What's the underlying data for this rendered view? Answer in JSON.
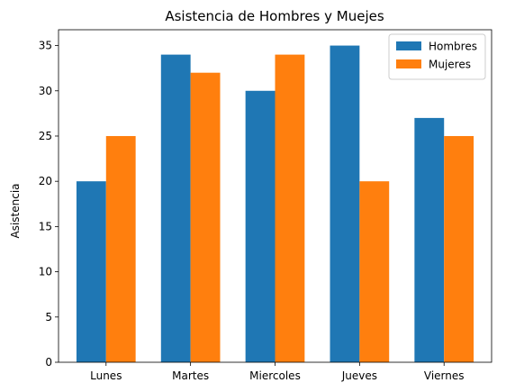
{
  "chart_data": {
    "type": "bar",
    "title": "Asistencia de Hombres y Muejes",
    "xlabel": "",
    "ylabel": "Asistencia",
    "categories": [
      "Lunes",
      "Martes",
      "Miercoles",
      "Jueves",
      "Viernes"
    ],
    "series": [
      {
        "name": "Hombres",
        "color": "#1f77b4",
        "values": [
          20,
          34,
          30,
          35,
          27
        ]
      },
      {
        "name": "Mujeres",
        "color": "#ff7f0e",
        "values": [
          25,
          32,
          34,
          20,
          25
        ]
      }
    ],
    "ylim": [
      0,
      36.75
    ],
    "yticks": [
      0,
      5,
      10,
      15,
      20,
      25,
      30,
      35
    ],
    "grid": false,
    "legend_position": "top-right"
  }
}
